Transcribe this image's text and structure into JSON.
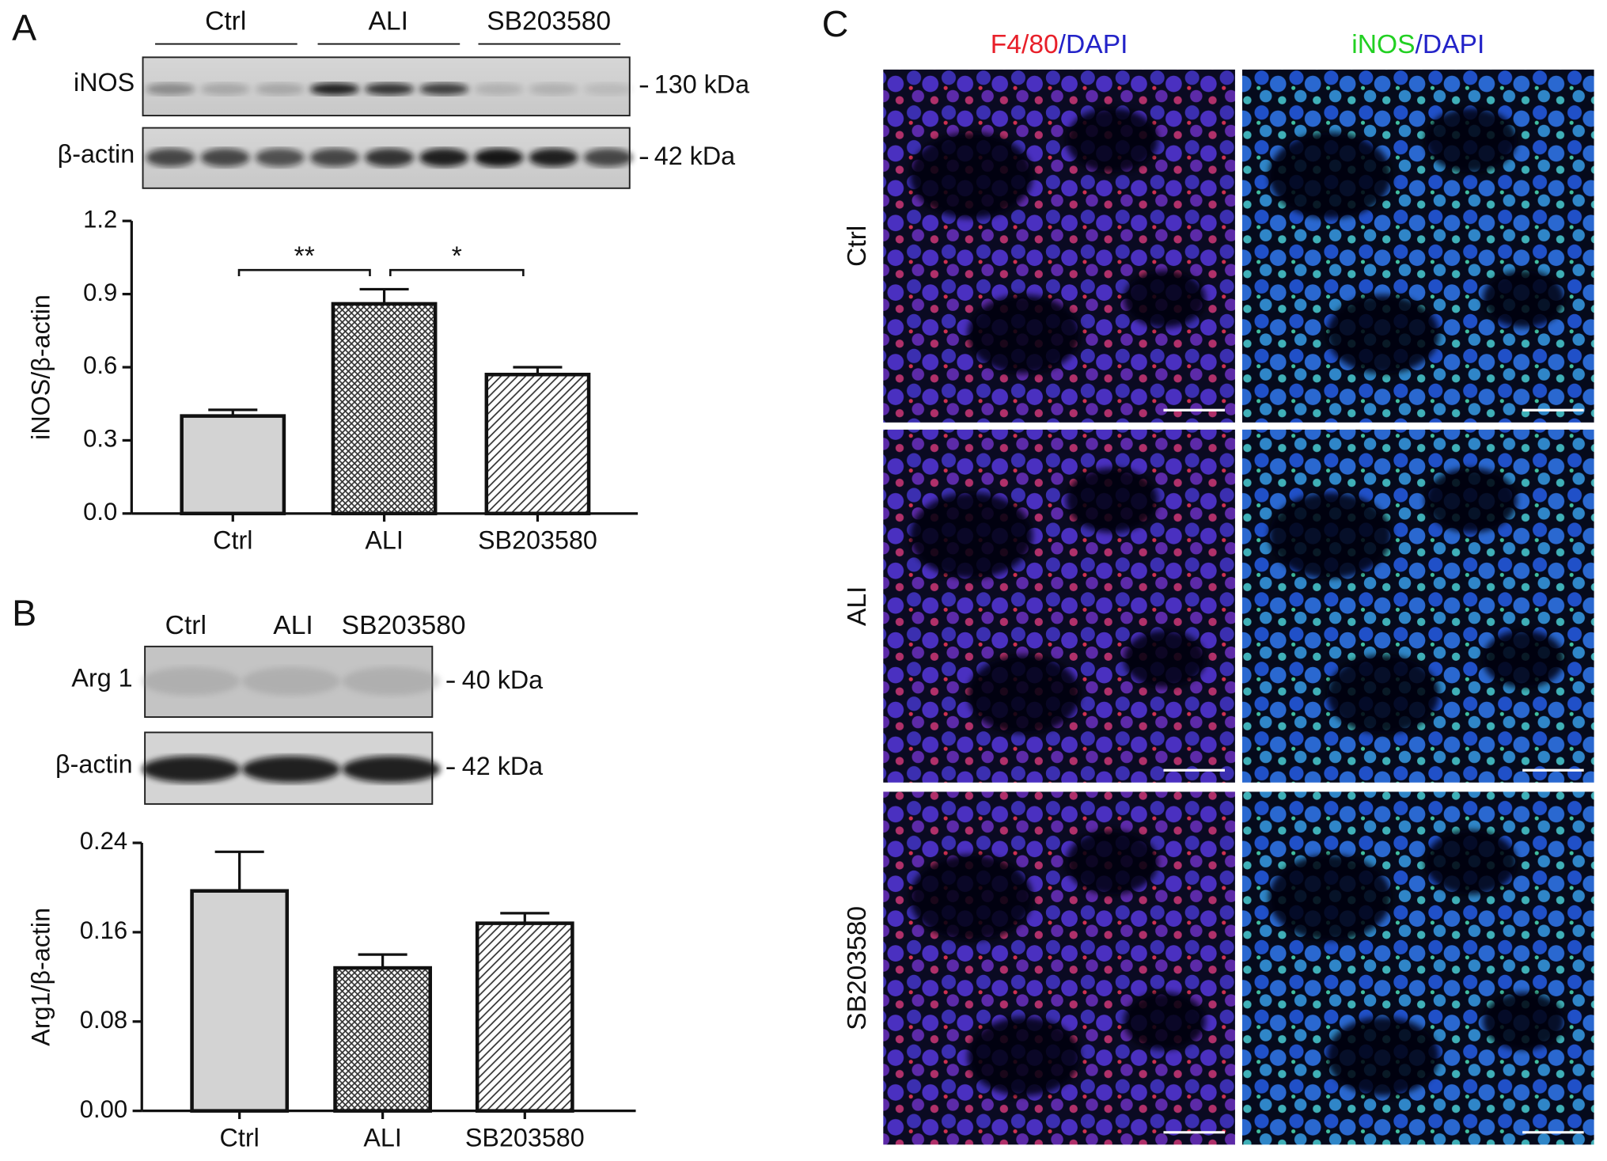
{
  "panels": {
    "a": "A",
    "b": "B",
    "c": "C"
  },
  "blot_a": {
    "lanes": [
      "Ctrl",
      "ALI",
      "SB203580"
    ],
    "rows": [
      {
        "label": "iNOS",
        "size": "130 kDa"
      },
      {
        "label": "β-actin",
        "size": "42 kDa"
      }
    ]
  },
  "blot_b": {
    "lanes": [
      "Ctrl",
      "ALI",
      "SB203580"
    ],
    "rows": [
      {
        "label": "Arg 1",
        "size": "40 kDa"
      },
      {
        "label": "β-actin",
        "size": "42 kDa"
      }
    ]
  },
  "microscopy": {
    "columns": [
      [
        {
          "text": "F4/80",
          "color": "#e8202a"
        },
        {
          "text": "/",
          "color": "#2323c8"
        },
        {
          "text": "DAPI",
          "color": "#2323c8"
        }
      ],
      [
        {
          "text": "iNOS",
          "color": "#22d022"
        },
        {
          "text": "/",
          "color": "#2323c8"
        },
        {
          "text": "DAPI",
          "color": "#2323c8"
        }
      ]
    ],
    "rows": [
      "Ctrl",
      "ALI",
      "SB203580"
    ]
  },
  "chart_data": [
    {
      "type": "bar",
      "ylabel": "iNOS/β-actin",
      "categories": [
        "Ctrl",
        "ALI",
        "SB203580"
      ],
      "values": [
        0.4,
        0.86,
        0.57
      ],
      "errors": [
        0.025,
        0.06,
        0.03
      ],
      "colors": [
        "#d3d3d3",
        "#ffffff",
        "#ffffff"
      ],
      "hatch": [
        "none",
        "cross",
        "diagonal"
      ],
      "ylim": [
        0,
        1.2
      ],
      "yticks": [
        {
          "value": 0,
          "label": "0.0"
        },
        0.3,
        0.6,
        0.9,
        1.2
      ],
      "annotations": [
        "**",
        "*"
      ]
    },
    {
      "type": "bar",
      "ylabel": "Arg1/β-actin",
      "categories": [
        "Ctrl",
        "ALI",
        "SB203580"
      ],
      "values": [
        0.197,
        0.128,
        0.168
      ],
      "errors": [
        0.035,
        0.012,
        0.009
      ],
      "colors": [
        "#d3d3d3",
        "#ffffff",
        "#ffffff"
      ],
      "hatch": [
        "none",
        "cross",
        "diagonal"
      ],
      "ylim": [
        0,
        0.24
      ],
      "yticks": [
        {
          "value": 0,
          "label": "0.00"
        },
        0.08,
        0.16,
        0.24
      ]
    }
  ]
}
